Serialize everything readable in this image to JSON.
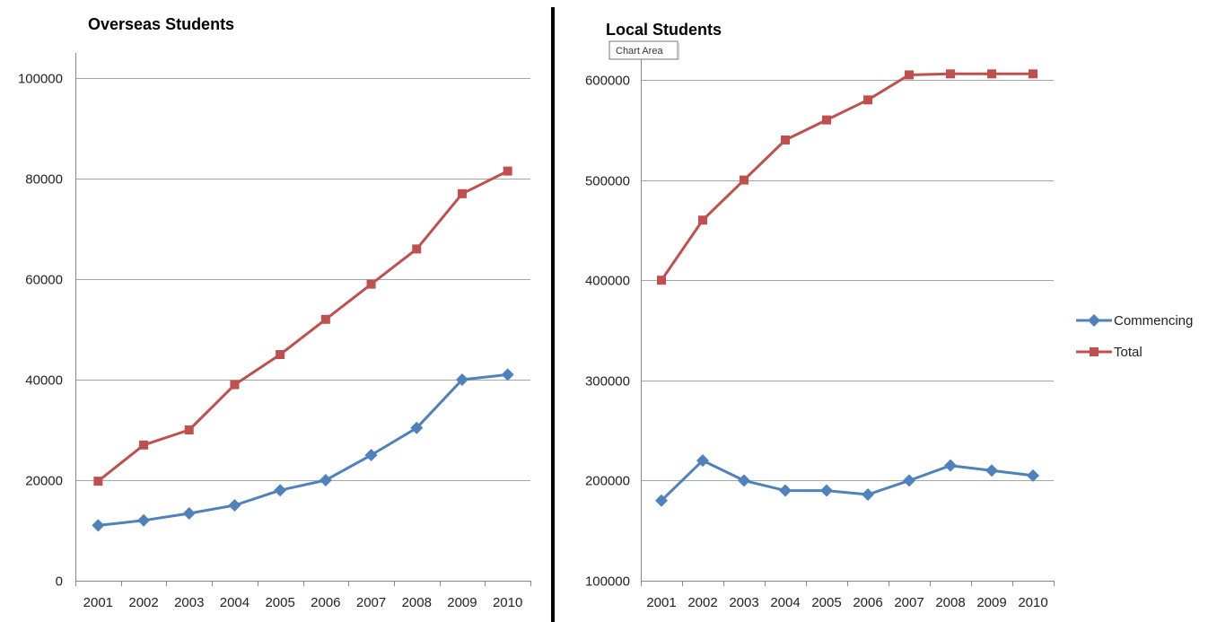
{
  "chart_data": [
    {
      "type": "line",
      "title": "Overseas Students",
      "xlabel": "",
      "ylabel": "",
      "categories": [
        "2001",
        "2002",
        "2003",
        "2004",
        "2005",
        "2006",
        "2007",
        "2008",
        "2009",
        "2010"
      ],
      "ylim": [
        0,
        100000
      ],
      "yticks": [
        0,
        20000,
        40000,
        60000,
        80000,
        100000
      ],
      "grid": true,
      "series": [
        {
          "name": "Commencing",
          "color": "#4f81bd",
          "marker": "diamond",
          "values": [
            11000,
            12000,
            13400,
            15000,
            18000,
            20000,
            25000,
            30400,
            40000,
            41000
          ]
        },
        {
          "name": "Total",
          "color": "#c0504d",
          "marker": "square",
          "values": [
            19800,
            27000,
            30000,
            39000,
            45000,
            52000,
            59000,
            66000,
            77000,
            81500
          ]
        }
      ]
    },
    {
      "type": "line",
      "title": "Local Students",
      "xlabel": "",
      "ylabel": "",
      "categories": [
        "2001",
        "2002",
        "2003",
        "2004",
        "2005",
        "2006",
        "2007",
        "2008",
        "2009",
        "2010"
      ],
      "ylim": [
        100000,
        600000
      ],
      "yticks": [
        100000,
        200000,
        300000,
        400000,
        500000,
        600000
      ],
      "grid": true,
      "legend": "right",
      "series": [
        {
          "name": "Commencing",
          "color": "#4f81bd",
          "marker": "diamond",
          "values": [
            180000,
            220000,
            200000,
            190000,
            190000,
            186000,
            200000,
            215000,
            210000,
            205000
          ]
        },
        {
          "name": "Total",
          "color": "#c0504d",
          "marker": "square",
          "values": [
            400000,
            460000,
            500000,
            540000,
            560000,
            580000,
            605000,
            606000,
            606000,
            606000
          ]
        }
      ]
    }
  ],
  "tooltip": {
    "text": "Chart Area"
  },
  "colors": {
    "gridline": "#a6a6a6",
    "axis": "#868686",
    "divider": "#000000"
  }
}
